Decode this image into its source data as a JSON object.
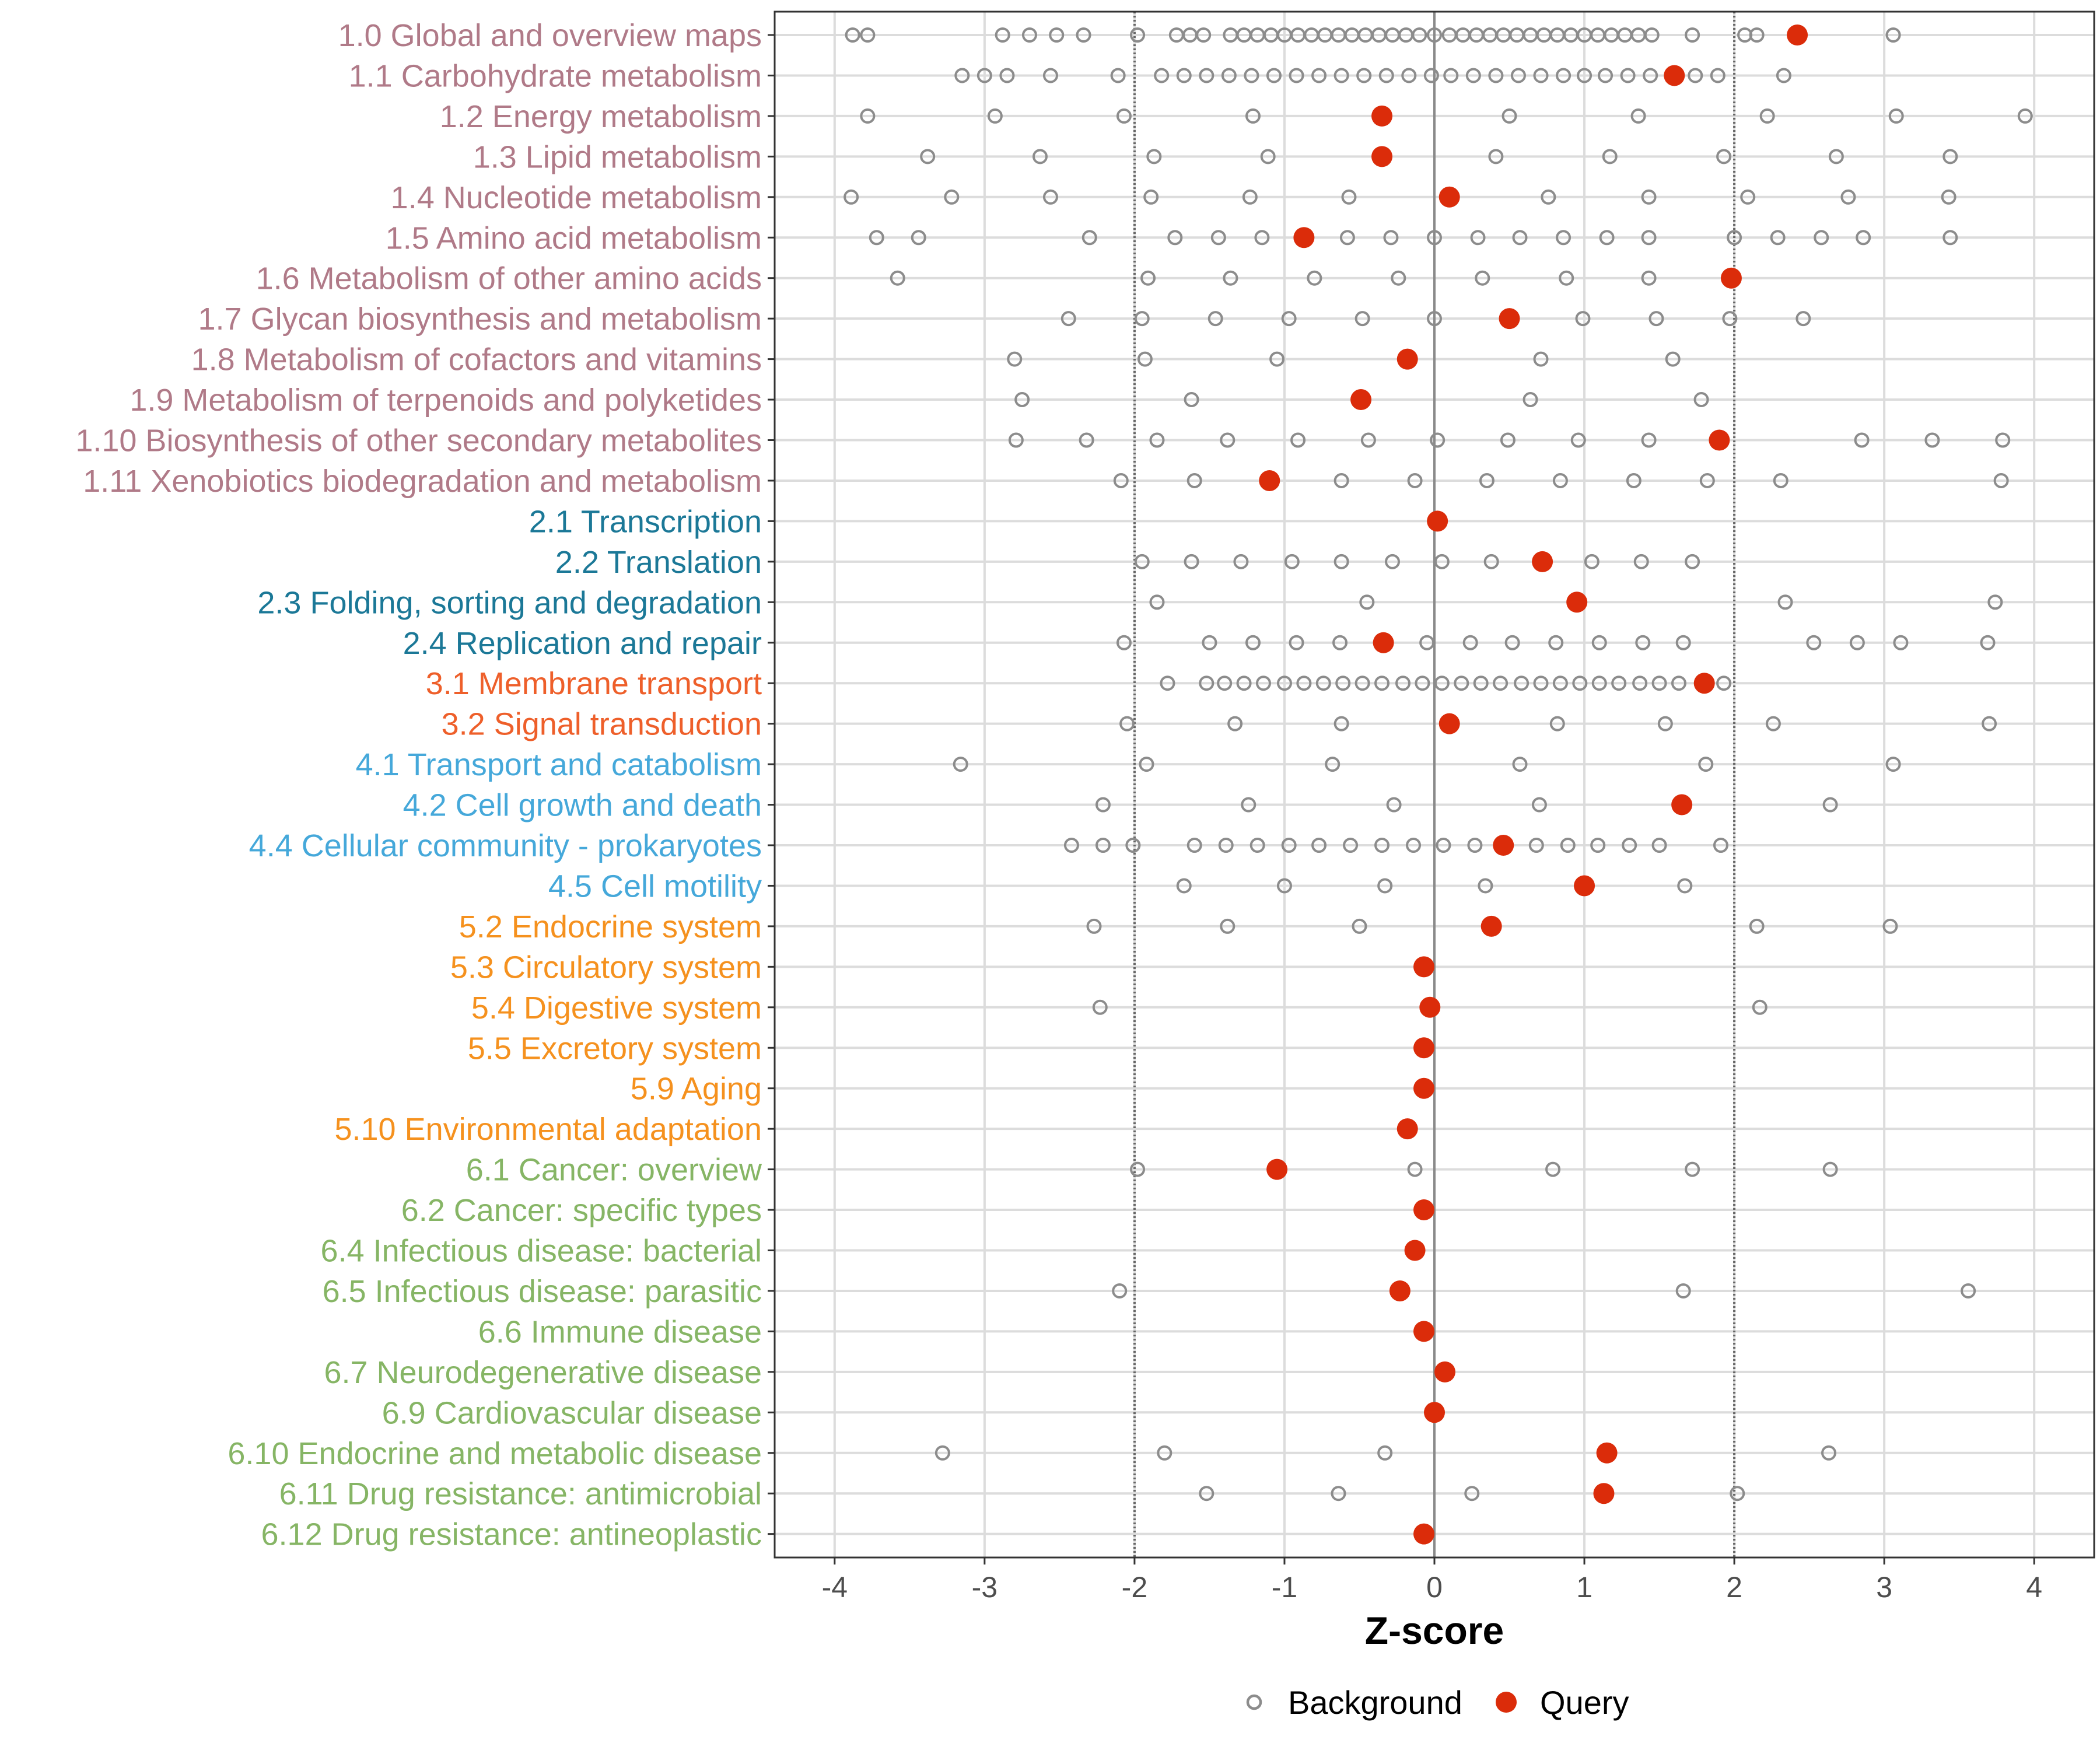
{
  "chart_data": {
    "type": "scatter",
    "xlabel": "Z-score",
    "xlim": [
      -4.4,
      4.4
    ],
    "xticks": [
      -4,
      -3,
      -2,
      -1,
      0,
      1,
      2,
      3,
      4
    ],
    "xtick_labels": [
      "-4",
      "-3",
      "-2",
      "-1",
      "0",
      "1",
      "2",
      "3",
      "4"
    ],
    "reference_lines": [
      -2,
      0,
      2
    ],
    "group_colors": {
      "1": "#b07a88",
      "2": "#1b7897",
      "3": "#ee5f2a",
      "4": "#45a8da",
      "5": "#f5911e",
      "6": "#86b565"
    },
    "colors": {
      "background": "#8c8c8c",
      "query": "#db2c0a",
      "grid": "#dcdcdc"
    },
    "legend": {
      "position": "bottom",
      "items": [
        {
          "label": "Background",
          "kind": "background"
        },
        {
          "label": "Query",
          "kind": "query"
        }
      ]
    },
    "categories": [
      {
        "label": "1.0 Global and overview maps",
        "group": "1",
        "query": 2.42,
        "background": [
          -3.88,
          -3.78,
          -2.88,
          -2.7,
          -2.52,
          -2.34,
          -1.98,
          -1.72,
          -1.63,
          -1.54,
          -1.36,
          -1.27,
          -1.18,
          -1.09,
          -1.0,
          -0.91,
          -0.82,
          -0.73,
          -0.64,
          -0.55,
          -0.46,
          -0.37,
          -0.28,
          -0.19,
          -0.1,
          0.0,
          0.1,
          0.19,
          0.28,
          0.37,
          0.46,
          0.55,
          0.64,
          0.73,
          0.82,
          0.91,
          1.0,
          1.09,
          1.18,
          1.27,
          1.36,
          1.45,
          1.72,
          2.07,
          2.15,
          3.06
        ]
      },
      {
        "label": "1.1 Carbohydrate metabolism",
        "group": "1",
        "query": 1.6,
        "background": [
          -3.15,
          -3.0,
          -2.85,
          -2.56,
          -2.11,
          -1.82,
          -1.67,
          -1.52,
          -1.37,
          -1.22,
          -1.07,
          -0.92,
          -0.77,
          -0.62,
          -0.47,
          -0.32,
          -0.17,
          -0.02,
          0.11,
          0.26,
          0.41,
          0.56,
          0.71,
          0.86,
          1.0,
          1.14,
          1.29,
          1.44,
          1.74,
          1.89,
          2.33
        ]
      },
      {
        "label": "1.2 Energy metabolism",
        "group": "1",
        "query": -0.35,
        "background": [
          -3.78,
          -2.93,
          -2.07,
          -1.21,
          0.5,
          1.36,
          2.22,
          3.08,
          3.94
        ]
      },
      {
        "label": "1.3 Lipid metabolism",
        "group": "1",
        "query": -0.35,
        "background": [
          -3.38,
          -2.63,
          -1.87,
          -1.11,
          0.41,
          1.17,
          1.93,
          2.68,
          3.44
        ]
      },
      {
        "label": "1.4 Nucleotide metabolism",
        "group": "1",
        "query": 0.1,
        "background": [
          -3.89,
          -3.22,
          -2.56,
          -1.89,
          -1.23,
          -0.57,
          0.76,
          1.43,
          2.09,
          2.76,
          3.43
        ]
      },
      {
        "label": "1.5 Amino acid metabolism",
        "group": "1",
        "query": -0.87,
        "background": [
          -3.72,
          -3.44,
          -2.3,
          -1.73,
          -1.44,
          -1.15,
          -0.58,
          -0.29,
          0.0,
          0.29,
          0.57,
          0.86,
          1.15,
          1.43,
          2.0,
          2.29,
          2.58,
          2.86,
          3.44
        ]
      },
      {
        "label": "1.6 Metabolism of other amino acids",
        "group": "1",
        "query": 1.98,
        "background": [
          -3.58,
          -1.91,
          -1.36,
          -0.8,
          -0.24,
          0.32,
          0.88,
          1.43
        ]
      },
      {
        "label": "1.7 Glycan biosynthesis and metabolism",
        "group": "1",
        "query": 0.5,
        "background": [
          -2.44,
          -1.95,
          -1.46,
          -0.97,
          -0.48,
          0.0,
          0.99,
          1.48,
          1.97,
          2.46
        ]
      },
      {
        "label": "1.8 Metabolism of cofactors and vitamins",
        "group": "1",
        "query": -0.18,
        "background": [
          -2.8,
          -1.93,
          -1.05,
          0.71,
          1.59
        ]
      },
      {
        "label": "1.9 Metabolism of terpenoids and polyketides",
        "group": "1",
        "query": -0.49,
        "background": [
          -2.75,
          -1.62,
          0.64,
          1.78
        ]
      },
      {
        "label": "1.10 Biosynthesis of other secondary metabolites",
        "group": "1",
        "query": 1.9,
        "background": [
          -2.79,
          -2.32,
          -1.85,
          -1.38,
          -0.91,
          -0.44,
          0.02,
          0.49,
          0.96,
          1.43,
          2.85,
          3.32,
          3.79
        ]
      },
      {
        "label": "1.11 Xenobiotics biodegradation and metabolism",
        "group": "1",
        "query": -1.1,
        "background": [
          -2.09,
          -1.6,
          -0.62,
          -0.13,
          0.35,
          0.84,
          1.33,
          1.82,
          2.31,
          3.78
        ]
      },
      {
        "label": "2.1 Transcription",
        "group": "2",
        "query": 0.02,
        "background": []
      },
      {
        "label": "2.2 Translation",
        "group": "2",
        "query": 0.72,
        "background": [
          -1.95,
          -1.62,
          -1.29,
          -0.95,
          -0.62,
          -0.28,
          0.05,
          0.38,
          1.05,
          1.38,
          1.72
        ]
      },
      {
        "label": "2.3 Folding, sorting and degradation",
        "group": "2",
        "query": 0.95,
        "background": [
          -1.85,
          -0.45,
          2.34,
          3.74
        ]
      },
      {
        "label": "2.4 Replication and repair",
        "group": "2",
        "query": -0.34,
        "background": [
          -2.07,
          -1.5,
          -1.21,
          -0.92,
          -0.63,
          -0.05,
          0.24,
          0.52,
          0.81,
          1.1,
          1.39,
          1.66,
          2.53,
          2.82,
          3.11,
          3.69
        ]
      },
      {
        "label": "3.1 Membrane transport",
        "group": "3",
        "query": 1.8,
        "background": [
          -1.78,
          -1.52,
          -1.4,
          -1.27,
          -1.14,
          -1.0,
          -0.87,
          -0.74,
          -0.61,
          -0.48,
          -0.35,
          -0.21,
          -0.08,
          0.05,
          0.18,
          0.31,
          0.44,
          0.58,
          0.71,
          0.84,
          0.97,
          1.1,
          1.23,
          1.37,
          1.5,
          1.63,
          1.93
        ]
      },
      {
        "label": "3.2 Signal transduction",
        "group": "3",
        "query": 0.1,
        "background": [
          -2.05,
          -1.33,
          -0.62,
          0.82,
          1.54,
          2.26,
          3.7
        ]
      },
      {
        "label": "4.1 Transport and catabolism",
        "group": "4",
        "query": null,
        "background": [
          -3.16,
          -1.92,
          -0.68,
          0.57,
          1.81,
          3.06
        ]
      },
      {
        "label": "4.2 Cell growth and death",
        "group": "4",
        "query": 1.65,
        "background": [
          -2.21,
          -1.24,
          -0.27,
          0.7,
          2.64
        ]
      },
      {
        "label": "4.4 Cellular community - prokaryotes",
        "group": "4",
        "query": 0.46,
        "background": [
          -2.42,
          -2.21,
          -2.01,
          -1.6,
          -1.39,
          -1.18,
          -0.97,
          -0.77,
          -0.56,
          -0.35,
          -0.14,
          0.06,
          0.27,
          0.68,
          0.89,
          1.09,
          1.3,
          1.5,
          1.91
        ]
      },
      {
        "label": "4.5 Cell motility",
        "group": "4",
        "query": 1.0,
        "background": [
          -1.67,
          -1.0,
          -0.33,
          0.34,
          1.67
        ]
      },
      {
        "label": "5.2 Endocrine system",
        "group": "5",
        "query": 0.38,
        "background": [
          -2.27,
          -1.38,
          -0.5,
          2.15,
          3.04
        ]
      },
      {
        "label": "5.3 Circulatory system",
        "group": "5",
        "query": -0.07,
        "background": []
      },
      {
        "label": "5.4 Digestive system",
        "group": "5",
        "query": -0.03,
        "background": [
          -2.23,
          2.17
        ]
      },
      {
        "label": "5.5 Excretory system",
        "group": "5",
        "query": -0.07,
        "background": []
      },
      {
        "label": "5.9 Aging",
        "group": "5",
        "query": -0.07,
        "background": []
      },
      {
        "label": "5.10 Environmental adaptation",
        "group": "5",
        "query": -0.18,
        "background": []
      },
      {
        "label": "6.1 Cancer: overview",
        "group": "6",
        "query": -1.05,
        "background": [
          -1.98,
          -0.13,
          0.79,
          1.72,
          2.64
        ]
      },
      {
        "label": "6.2 Cancer: specific types",
        "group": "6",
        "query": -0.07,
        "background": []
      },
      {
        "label": "6.4 Infectious disease: bacterial",
        "group": "6",
        "query": -0.13,
        "background": []
      },
      {
        "label": "6.5 Infectious disease: parasitic",
        "group": "6",
        "query": -0.23,
        "background": [
          -2.1,
          1.66,
          3.56
        ]
      },
      {
        "label": "6.6 Immune disease",
        "group": "6",
        "query": -0.07,
        "background": []
      },
      {
        "label": "6.7 Neurodegenerative disease",
        "group": "6",
        "query": 0.07,
        "background": []
      },
      {
        "label": "6.9 Cardiovascular disease",
        "group": "6",
        "query": 0.0,
        "background": []
      },
      {
        "label": "6.10 Endocrine and metabolic disease",
        "group": "6",
        "query": 1.15,
        "background": [
          -3.28,
          -1.8,
          -0.33,
          2.63
        ]
      },
      {
        "label": "6.11 Drug resistance: antimicrobial",
        "group": "6",
        "query": 1.13,
        "background": [
          -1.52,
          -0.64,
          0.25,
          2.02
        ]
      },
      {
        "label": "6.12 Drug resistance: antineoplastic",
        "group": "6",
        "query": -0.07,
        "background": []
      }
    ]
  }
}
